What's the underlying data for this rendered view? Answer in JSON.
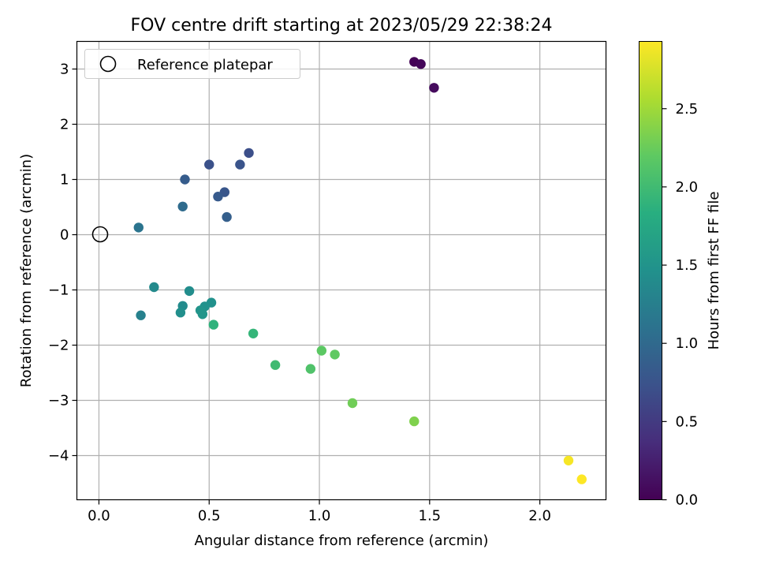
{
  "chart_data": {
    "type": "scatter",
    "title": "FOV centre drift starting at 2023/05/29 22:38:24",
    "xlabel": "Angular distance from reference (arcmin)",
    "ylabel": "Rotation from reference (arcmin)",
    "xlim": [
      -0.1,
      2.3
    ],
    "ylim": [
      -4.8,
      3.5
    ],
    "xticks": [
      0.0,
      0.5,
      1.0,
      1.5,
      2.0
    ],
    "xtick_labels": [
      "0.0",
      "0.5",
      "1.0",
      "1.5",
      "2.0"
    ],
    "yticks": [
      -4,
      -3,
      -2,
      -1,
      0,
      1,
      2,
      3
    ],
    "ytick_labels": [
      "−4",
      "−3",
      "−2",
      "−1",
      "0",
      "1",
      "2",
      "3"
    ],
    "grid": true,
    "legend": {
      "position": "top-left",
      "entries": [
        {
          "label": "Reference platepar",
          "marker": "open-circle"
        }
      ]
    },
    "reference_point": {
      "x": 0.0,
      "y": 0.0
    },
    "colorbar": {
      "label": "Hours from first FF file",
      "range": [
        0.0,
        2.93
      ],
      "ticks": [
        0.0,
        0.5,
        1.0,
        1.5,
        2.0,
        2.5
      ],
      "tick_labels": [
        "0.0",
        "0.5",
        "1.0",
        "1.5",
        "2.0",
        "2.5"
      ],
      "colormap": "viridis"
    },
    "points": [
      {
        "x": 1.43,
        "y": 3.13,
        "hours": 0.02
      },
      {
        "x": 1.46,
        "y": 3.09,
        "hours": 0.05
      },
      {
        "x": 1.52,
        "y": 2.66,
        "hours": 0.08
      },
      {
        "x": 0.68,
        "y": 1.48,
        "hours": 0.7
      },
      {
        "x": 0.5,
        "y": 1.27,
        "hours": 0.72
      },
      {
        "x": 0.64,
        "y": 1.27,
        "hours": 0.75
      },
      {
        "x": 0.39,
        "y": 1.0,
        "hours": 0.85
      },
      {
        "x": 0.57,
        "y": 0.77,
        "hours": 0.78
      },
      {
        "x": 0.54,
        "y": 0.69,
        "hours": 0.82
      },
      {
        "x": 0.38,
        "y": 0.51,
        "hours": 1.02
      },
      {
        "x": 0.58,
        "y": 0.32,
        "hours": 0.88
      },
      {
        "x": 0.18,
        "y": 0.13,
        "hours": 1.12
      },
      {
        "x": 0.25,
        "y": -0.95,
        "hours": 1.38
      },
      {
        "x": 0.41,
        "y": -1.02,
        "hours": 1.42
      },
      {
        "x": 0.51,
        "y": -1.23,
        "hours": 1.46
      },
      {
        "x": 0.38,
        "y": -1.29,
        "hours": 1.4
      },
      {
        "x": 0.48,
        "y": -1.3,
        "hours": 1.48
      },
      {
        "x": 0.46,
        "y": -1.37,
        "hours": 1.5
      },
      {
        "x": 0.37,
        "y": -1.41,
        "hours": 1.44
      },
      {
        "x": 0.47,
        "y": -1.44,
        "hours": 1.52
      },
      {
        "x": 0.19,
        "y": -1.46,
        "hours": 1.28
      },
      {
        "x": 0.52,
        "y": -1.63,
        "hours": 1.88
      },
      {
        "x": 0.7,
        "y": -1.79,
        "hours": 1.92
      },
      {
        "x": 1.01,
        "y": -2.1,
        "hours": 2.18
      },
      {
        "x": 1.07,
        "y": -2.17,
        "hours": 2.2
      },
      {
        "x": 0.8,
        "y": -2.36,
        "hours": 2.0
      },
      {
        "x": 0.96,
        "y": -2.43,
        "hours": 2.1
      },
      {
        "x": 1.15,
        "y": -3.05,
        "hours": 2.28
      },
      {
        "x": 1.43,
        "y": -3.38,
        "hours": 2.35
      },
      {
        "x": 2.13,
        "y": -4.09,
        "hours": 2.9
      },
      {
        "x": 2.19,
        "y": -4.43,
        "hours": 2.93
      }
    ]
  }
}
